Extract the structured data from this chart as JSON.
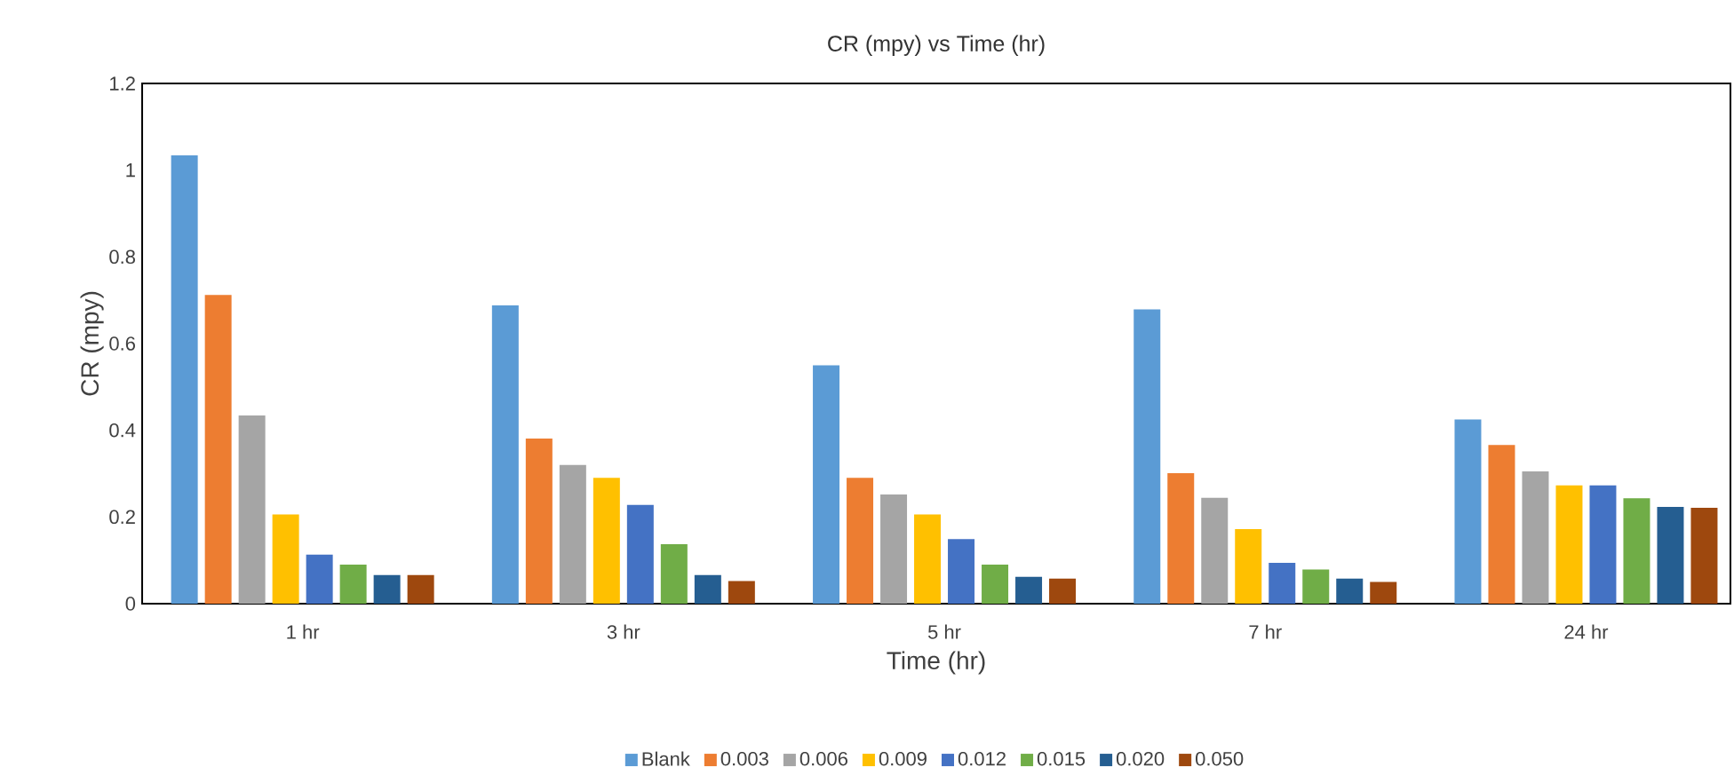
{
  "chart_data": {
    "type": "bar",
    "title": "CR (mpy) vs Time (hr)",
    "xlabel": "Time (hr)",
    "ylabel": "CR (mpy)",
    "categories": [
      "1 hr",
      "3 hr",
      "5 hr",
      "7 hr",
      "24 hr"
    ],
    "ylim": [
      0,
      1.2
    ],
    "yticks": [
      0,
      0.2,
      0.4,
      0.6,
      0.8,
      1,
      1.2
    ],
    "grid": false,
    "legend": "bottom",
    "series": [
      {
        "name": "Blank",
        "color": "#5b9bd5",
        "values": [
          1.034,
          0.688,
          0.55,
          0.679,
          0.425
        ]
      },
      {
        "name": "0.003",
        "color": "#ed7d31",
        "values": [
          0.712,
          0.381,
          0.29,
          0.301,
          0.366
        ]
      },
      {
        "name": "0.006",
        "color": "#a5a5a5",
        "values": [
          0.434,
          0.32,
          0.252,
          0.244,
          0.305
        ]
      },
      {
        "name": "0.009",
        "color": "#ffc000",
        "values": [
          0.206,
          0.29,
          0.206,
          0.172,
          0.273
        ]
      },
      {
        "name": "0.012",
        "color": "#4472c4",
        "values": [
          0.113,
          0.228,
          0.149,
          0.094,
          0.273
        ]
      },
      {
        "name": "0.015",
        "color": "#70ad47",
        "values": [
          0.09,
          0.137,
          0.09,
          0.079,
          0.243
        ]
      },
      {
        "name": "0.020",
        "color": "#255e91",
        "values": [
          0.066,
          0.066,
          0.062,
          0.058,
          0.223
        ]
      },
      {
        "name": "0.050",
        "color": "#9e480e",
        "values": [
          0.066,
          0.052,
          0.058,
          0.05,
          0.221
        ]
      }
    ]
  }
}
